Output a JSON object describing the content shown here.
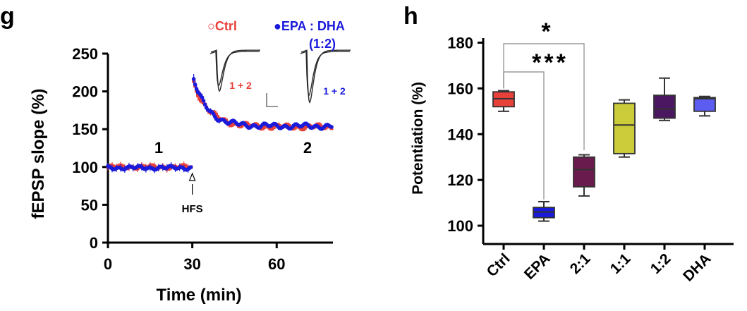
{
  "colors": {
    "ctrl": "#e8413a",
    "epa_dha": "#1a1adb",
    "axis": "#000000",
    "trace": "#2a2a2a",
    "bracket": "#9a9a9a"
  },
  "chart_data": [
    {
      "type": "scatter",
      "panel_label": "g",
      "title": "",
      "xlabel": "Time (min)",
      "ylabel": "fEPSP slope (%)",
      "xlim": [
        0,
        80
      ],
      "ylim": [
        0,
        250
      ],
      "xticks": [
        "0",
        "30",
        "60"
      ],
      "xtick_values": [
        0,
        30,
        60
      ],
      "yticks": [
        "0",
        "50",
        "100",
        "150",
        "200",
        "250"
      ],
      "ytick_values": [
        0,
        50,
        100,
        150,
        200,
        250
      ],
      "legend": [
        {
          "name": "Ctrl",
          "marker": "○",
          "color": "#e8413a"
        },
        {
          "name": "EPA : DHA",
          "extra": "(1:2)",
          "marker": "●",
          "color": "#1a1adb"
        }
      ],
      "annotations": {
        "baseline_label": "1",
        "post_label": "2",
        "stim_label": "HFS",
        "stim_time": 30,
        "trace_label_ctrl": "1 + 2",
        "trace_label_epa": "1 + 2"
      },
      "series": [
        {
          "name": "Ctrl",
          "baseline": 100,
          "peak": 212,
          "plateau": 153,
          "tau": 5.5
        },
        {
          "name": "EPA : DHA (1:2)",
          "baseline": 99,
          "peak": 216,
          "plateau": 154,
          "tau": 5.0
        }
      ]
    },
    {
      "type": "box",
      "panel_label": "h",
      "title": "",
      "xlabel": "",
      "ylabel": "Potentiation (%)",
      "ylim": [
        92,
        182
      ],
      "yticks": [
        "100",
        "120",
        "140",
        "160",
        "180"
      ],
      "ytick_values": [
        100,
        120,
        140,
        160,
        180
      ],
      "categories": [
        "Ctrl",
        "EPA",
        "2:1",
        "1:1",
        "1:2",
        "DHA"
      ],
      "boxes": [
        {
          "name": "Ctrl",
          "min": 150,
          "q1": 152,
          "median": 155.5,
          "q3": 158.5,
          "max": 159,
          "color": "#e8413a"
        },
        {
          "name": "EPA",
          "min": 102,
          "q1": 103.5,
          "median": 106,
          "q3": 108,
          "max": 110.5,
          "color": "#1a1adb"
        },
        {
          "name": "2:1",
          "min": 113,
          "q1": 117,
          "median": 124.5,
          "q3": 130,
          "max": 131,
          "color": "#6a1b4d"
        },
        {
          "name": "1:1",
          "min": 130,
          "q1": 131.5,
          "median": 144,
          "q3": 153.5,
          "max": 155,
          "color": "#cccc3a"
        },
        {
          "name": "1:2",
          "min": 146,
          "q1": 147,
          "median": 151,
          "q3": 157,
          "max": 164.5,
          "color": "#4a1760"
        },
        {
          "name": "DHA",
          "min": 148,
          "q1": 150,
          "median": 155.5,
          "q3": 156,
          "max": 156.5,
          "color": "#5c5cf0"
        }
      ],
      "significance": [
        {
          "from": "Ctrl",
          "to": "EPA",
          "label": "***"
        },
        {
          "from": "Ctrl",
          "to": "2:1",
          "label": "*"
        }
      ]
    }
  ]
}
